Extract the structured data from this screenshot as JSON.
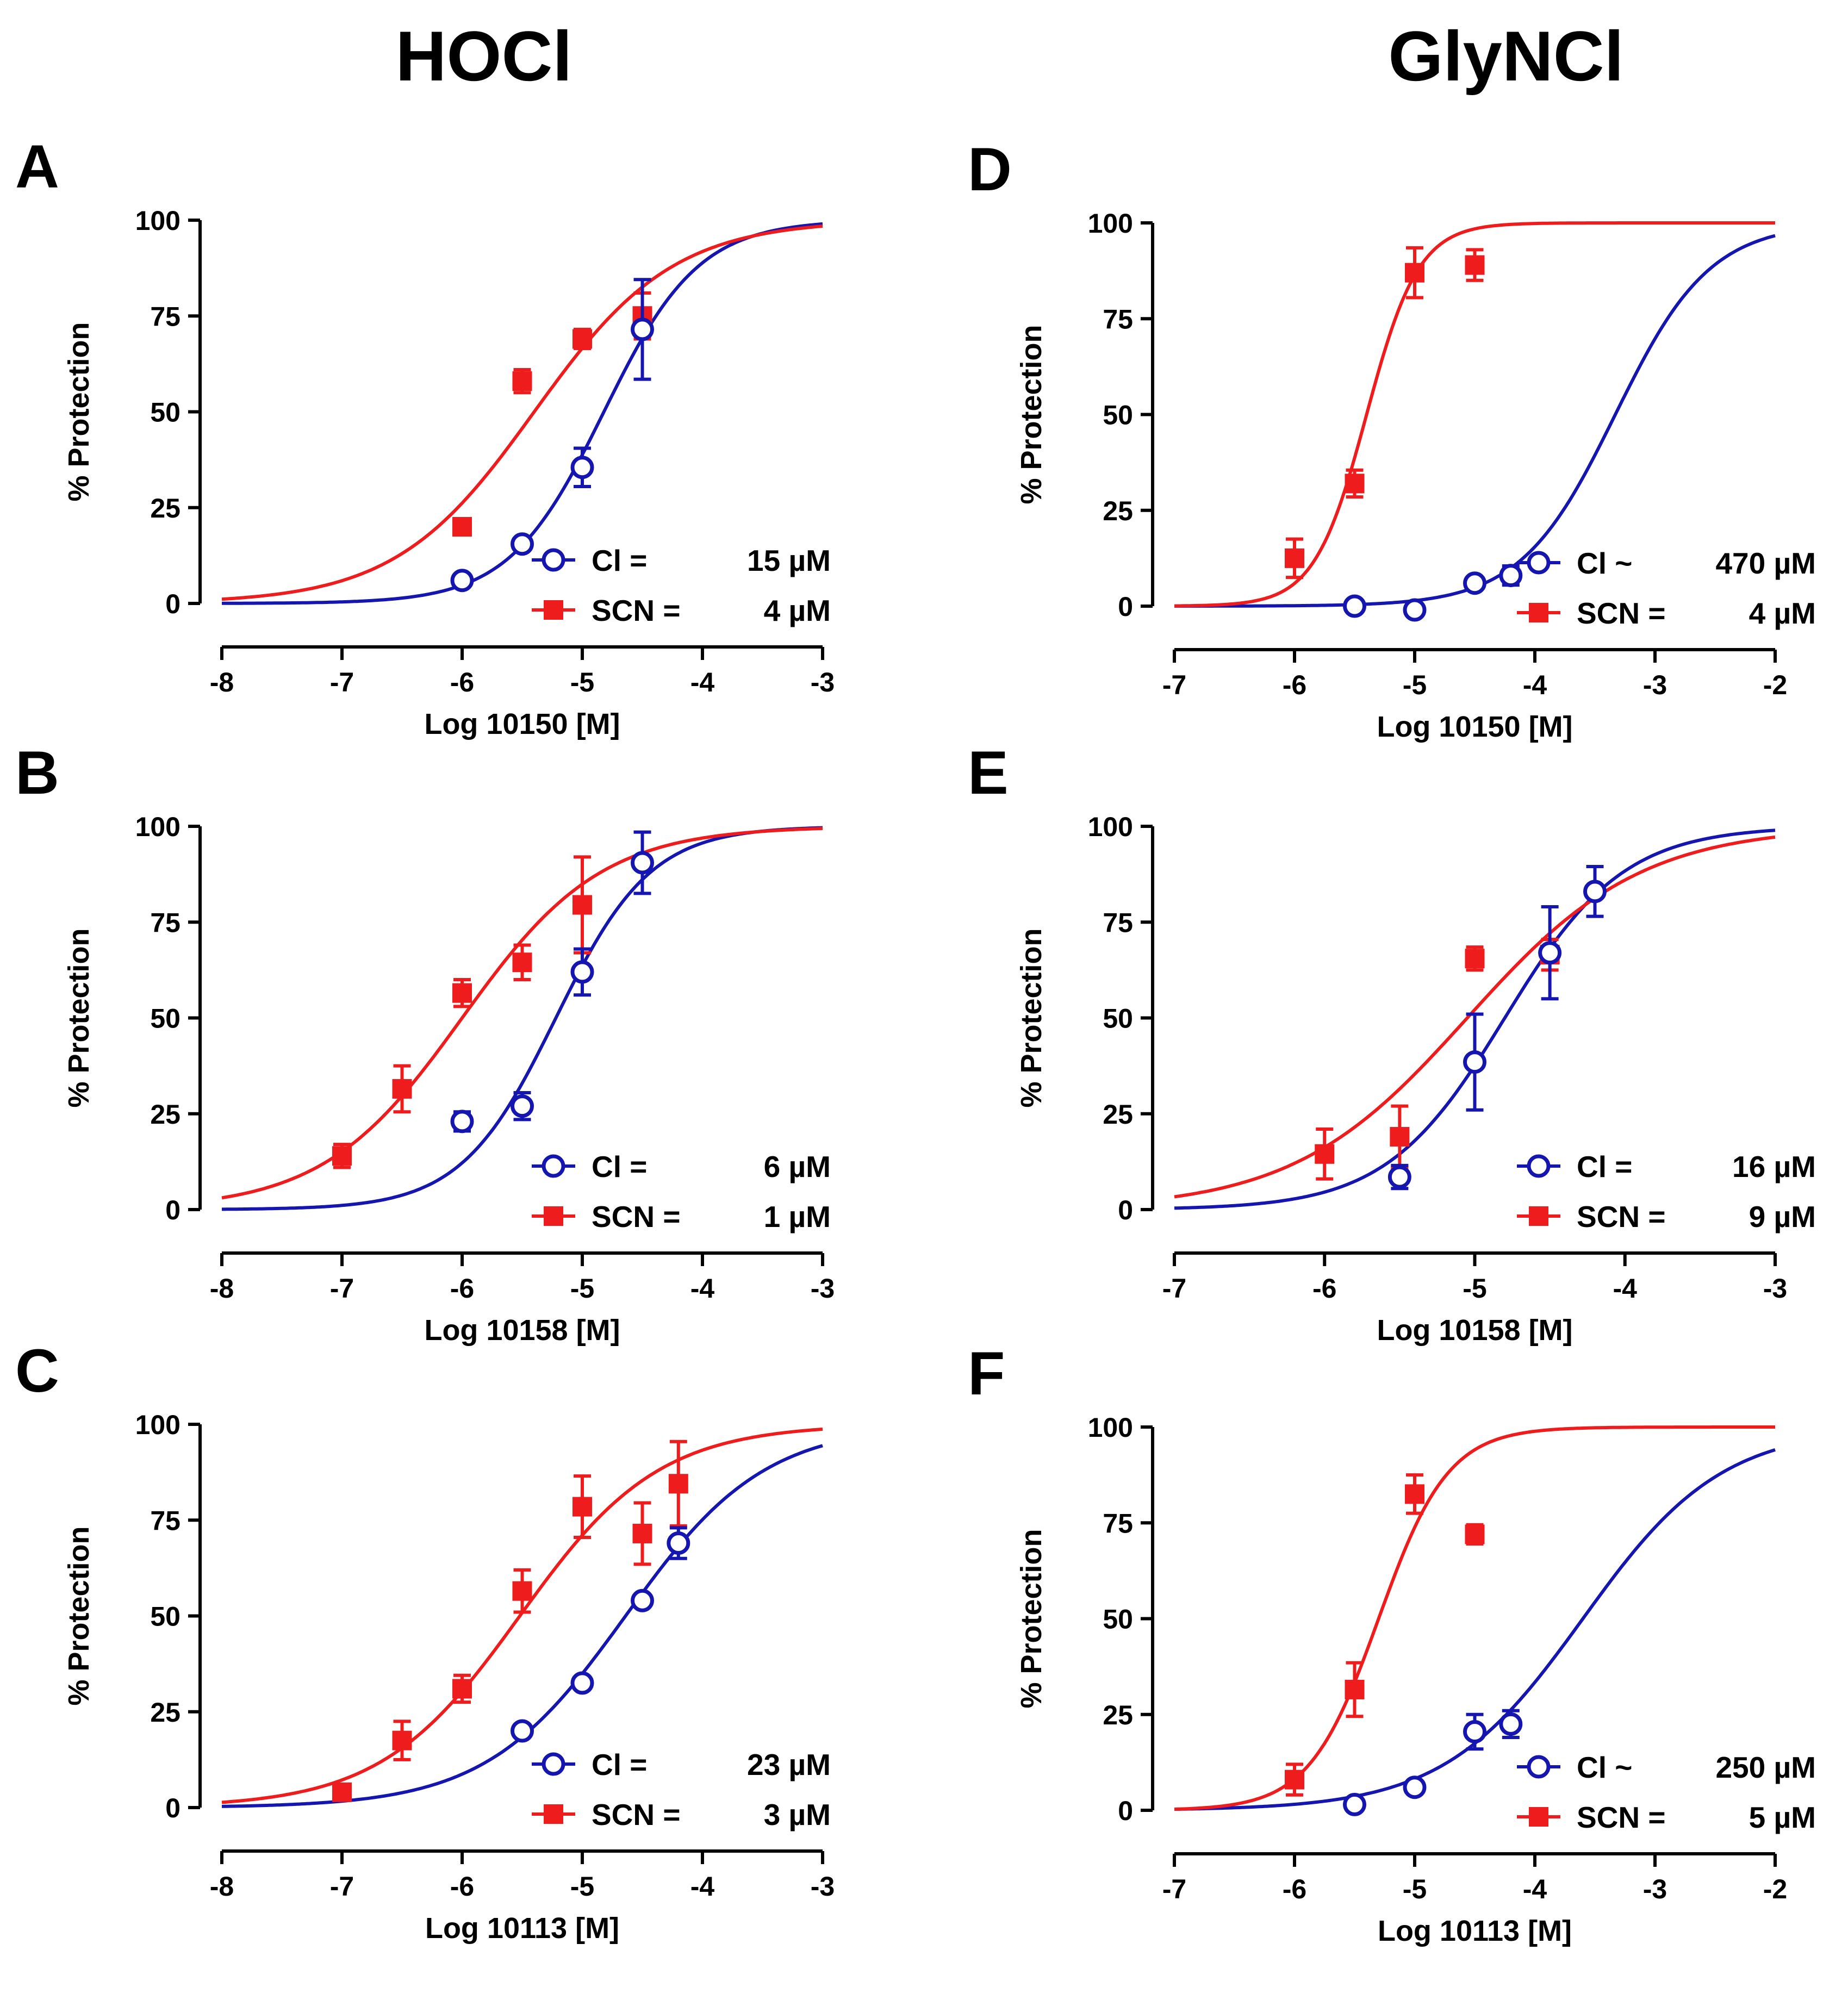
{
  "column_titles": [
    "HOCl",
    "GlyNCl"
  ],
  "colors": {
    "cl": "#1515b0",
    "scn": "#ee1c1c",
    "axis": "#000000"
  },
  "chart_data": [
    {
      "type": "line",
      "panel": "A",
      "xlabel": "Log 10150 [M]",
      "ylabel": "% Protection",
      "xlim": [
        -8,
        -3
      ],
      "ylim": [
        0,
        100
      ],
      "xticks": [
        -8,
        -7,
        -6,
        -5,
        -4,
        -3
      ],
      "yticks": [
        0,
        25,
        50,
        75,
        100
      ],
      "series": [
        {
          "name": "Cl",
          "legend_label": "Cl =",
          "legend_value": "15 µM",
          "marker": "open-circle",
          "ic50_log": -4.82,
          "hill": 1.1,
          "points": [
            {
              "x": -6,
              "y": 6,
              "err": 0
            },
            {
              "x": -5.5,
              "y": 15.5,
              "err": 0
            },
            {
              "x": -5,
              "y": 35.5,
              "err": 5
            },
            {
              "x": -4.5,
              "y": 71.5,
              "err": 13
            }
          ]
        },
        {
          "name": "SCN",
          "legend_label": "SCN =",
          "legend_value": "4 µM",
          "marker": "filled-square",
          "ic50_log": -5.4,
          "hill": 0.75,
          "points": [
            {
              "x": -6,
              "y": 20,
              "err": 0
            },
            {
              "x": -5.5,
              "y": 58,
              "err": 3
            },
            {
              "x": -5,
              "y": 69,
              "err": 2.5
            },
            {
              "x": -4.5,
              "y": 75,
              "err": 6
            }
          ]
        }
      ]
    },
    {
      "type": "line",
      "panel": "B",
      "xlabel": "Log 10158 [M]",
      "ylabel": "% Protection",
      "xlim": [
        -8,
        -3
      ],
      "ylim": [
        0,
        100
      ],
      "xticks": [
        -8,
        -7,
        -6,
        -5,
        -4,
        -3
      ],
      "yticks": [
        0,
        25,
        50,
        75,
        100
      ],
      "series": [
        {
          "name": "Cl",
          "legend_label": "Cl    =",
          "legend_value": "6 µM",
          "marker": "open-circle",
          "ic50_log": -5.22,
          "hill": 1.1,
          "points": [
            {
              "x": -6,
              "y": 23,
              "err": 2.5
            },
            {
              "x": -5.5,
              "y": 27,
              "err": 3.5
            },
            {
              "x": -5,
              "y": 62,
              "err": 6
            },
            {
              "x": -4.5,
              "y": 90.5,
              "err": 8
            }
          ]
        },
        {
          "name": "SCN",
          "legend_label": "SCN =",
          "legend_value": "1 µM",
          "marker": "filled-square",
          "ic50_log": -6.0,
          "hill": 0.75,
          "points": [
            {
              "x": -7,
              "y": 14,
              "err": 3
            },
            {
              "x": -6.5,
              "y": 31.5,
              "err": 6
            },
            {
              "x": -6,
              "y": 56.5,
              "err": 3.5
            },
            {
              "x": -5.5,
              "y": 64.5,
              "err": 4.5
            },
            {
              "x": -5,
              "y": 79.5,
              "err": 12.5
            }
          ]
        }
      ]
    },
    {
      "type": "line",
      "panel": "C",
      "xlabel": "Log 10113 [M]",
      "ylabel": "% Protection",
      "xlim": [
        -8,
        -3
      ],
      "ylim": [
        0,
        100
      ],
      "xticks": [
        -8,
        -7,
        -6,
        -5,
        -4,
        -3
      ],
      "yticks": [
        0,
        25,
        50,
        75,
        100
      ],
      "series": [
        {
          "name": "Cl",
          "legend_label": "Cl    =",
          "legend_value": "23 µM",
          "marker": "open-circle",
          "ic50_log": -4.64,
          "hill": 0.75,
          "points": [
            {
              "x": -5.5,
              "y": 20,
              "err": 0
            },
            {
              "x": -5,
              "y": 32.5,
              "err": 0
            },
            {
              "x": -4.5,
              "y": 54,
              "err": 0
            },
            {
              "x": -4.2,
              "y": 69,
              "err": 4
            }
          ]
        },
        {
          "name": "SCN",
          "legend_label": "SCN =",
          "legend_value": "3 µM",
          "marker": "filled-square",
          "ic50_log": -5.52,
          "hill": 0.75,
          "points": [
            {
              "x": -7,
              "y": 4,
              "err": 0
            },
            {
              "x": -6.5,
              "y": 17.5,
              "err": 5
            },
            {
              "x": -6,
              "y": 31,
              "err": 3.5
            },
            {
              "x": -5.5,
              "y": 56.5,
              "err": 5.5
            },
            {
              "x": -5,
              "y": 78.5,
              "err": 8
            },
            {
              "x": -4.5,
              "y": 71.5,
              "err": 8
            },
            {
              "x": -4.2,
              "y": 84.5,
              "err": 11
            }
          ]
        }
      ]
    },
    {
      "type": "line",
      "panel": "D",
      "xlabel": "Log 10150 [M]",
      "ylabel": "% Protection",
      "xlim": [
        -7,
        -2
      ],
      "ylim": [
        0,
        100
      ],
      "xticks": [
        -7,
        -6,
        -5,
        -4,
        -3,
        -2
      ],
      "yticks": [
        0,
        25,
        50,
        75,
        100
      ],
      "series": [
        {
          "name": "Cl",
          "legend_label": "Cl  ~",
          "legend_value": "470 µM",
          "marker": "open-circle",
          "ic50_log": -3.33,
          "hill": 1.1,
          "points": [
            {
              "x": -5.5,
              "y": 0,
              "err": 0
            },
            {
              "x": -5,
              "y": -1,
              "err": 0
            },
            {
              "x": -4.5,
              "y": 6,
              "err": 0
            },
            {
              "x": -4.2,
              "y": 8,
              "err": 2.5
            }
          ]
        },
        {
          "name": "SCN",
          "legend_label": "SCN =",
          "legend_value": "4 µM",
          "marker": "filled-square",
          "ic50_log": -5.4,
          "hill": 2.0,
          "points": [
            {
              "x": -6,
              "y": 12.5,
              "err": 5
            },
            {
              "x": -5.5,
              "y": 32,
              "err": 3.5
            },
            {
              "x": -5,
              "y": 87,
              "err": 6.5
            },
            {
              "x": -4.5,
              "y": 89,
              "err": 4
            }
          ]
        }
      ]
    },
    {
      "type": "line",
      "panel": "E",
      "xlabel": "Log 10158 [M]",
      "ylabel": "% Protection",
      "xlim": [
        -7,
        -3
      ],
      "ylim": [
        0,
        100
      ],
      "xticks": [
        -7,
        -6,
        -5,
        -4,
        -3
      ],
      "yticks": [
        0,
        25,
        50,
        75,
        100
      ],
      "series": [
        {
          "name": "Cl",
          "legend_label": "Cl    =",
          "legend_value": "16 µM",
          "marker": "open-circle",
          "ic50_log": -4.8,
          "hill": 1.1,
          "points": [
            {
              "x": -5.5,
              "y": 8.5,
              "err": 3
            },
            {
              "x": -5,
              "y": 38.5,
              "err": 12.5
            },
            {
              "x": -4.5,
              "y": 67,
              "err": 12
            },
            {
              "x": -4.2,
              "y": 83,
              "err": 6.5
            }
          ]
        },
        {
          "name": "SCN",
          "legend_label": "SCN =",
          "legend_value": "9 µM",
          "marker": "filled-square",
          "ic50_log": -5.05,
          "hill": 0.75,
          "points": [
            {
              "x": -6,
              "y": 14.5,
              "err": 6.5
            },
            {
              "x": -5.5,
              "y": 19,
              "err": 8
            },
            {
              "x": -5,
              "y": 65.5,
              "err": 3
            },
            {
              "x": -4.5,
              "y": 66.5,
              "err": 4
            }
          ]
        }
      ]
    },
    {
      "type": "line",
      "panel": "F",
      "xlabel": "Log 10113 [M]",
      "ylabel": "% Protection",
      "xlim": [
        -7,
        -2
      ],
      "ylim": [
        0,
        100
      ],
      "xticks": [
        -7,
        -6,
        -5,
        -4,
        -3,
        -2
      ],
      "yticks": [
        0,
        25,
        50,
        75,
        100
      ],
      "series": [
        {
          "name": "Cl",
          "legend_label": "Cl  ~",
          "legend_value": "250 µM",
          "marker": "open-circle",
          "ic50_log": -3.6,
          "hill": 0.75,
          "points": [
            {
              "x": -5.5,
              "y": 1.5,
              "err": 0
            },
            {
              "x": -5,
              "y": 6,
              "err": 0
            },
            {
              "x": -4.5,
              "y": 20.5,
              "err": 4.5
            },
            {
              "x": -4.2,
              "y": 22.5,
              "err": 3.5
            }
          ]
        },
        {
          "name": "SCN",
          "legend_label": "SCN =",
          "legend_value": "5 µM",
          "marker": "filled-square",
          "ic50_log": -5.3,
          "hill": 1.5,
          "points": [
            {
              "x": -6,
              "y": 8,
              "err": 4
            },
            {
              "x": -5.5,
              "y": 31.5,
              "err": 7
            },
            {
              "x": -5,
              "y": 82.5,
              "err": 5
            },
            {
              "x": -4.5,
              "y": 72,
              "err": 2.5
            }
          ]
        }
      ]
    }
  ]
}
